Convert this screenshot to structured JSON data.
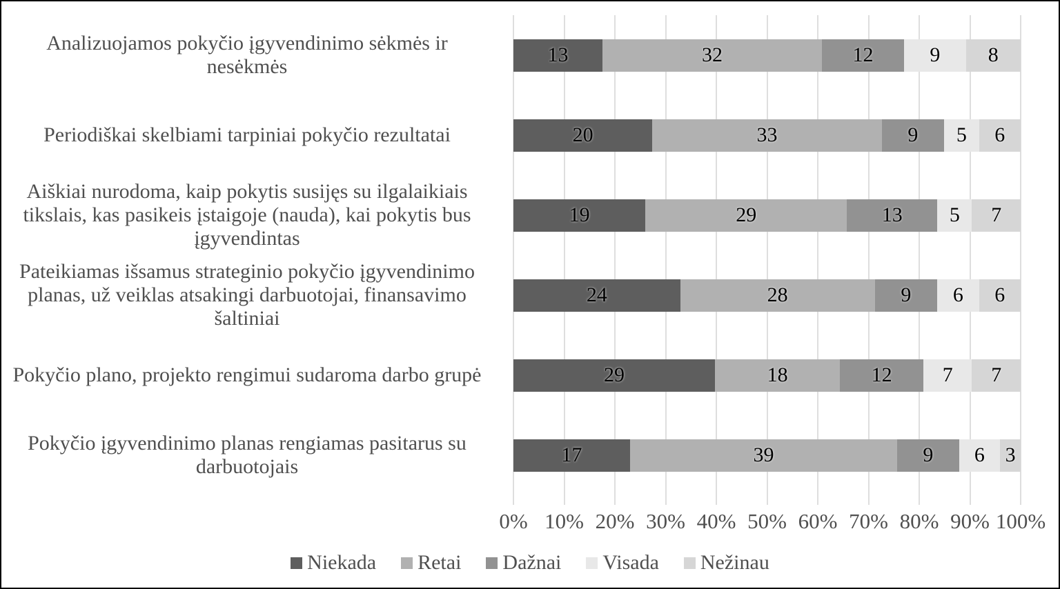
{
  "chart_data": {
    "type": "bar",
    "subtype": "stacked-100-horizontal",
    "title": "",
    "xlabel": "",
    "ylabel": "",
    "grid": "vertical",
    "legend_position": "bottom",
    "colors": {
      "background": "#ffffff",
      "figure_border": "#000000",
      "gridline": "#dedede",
      "axis_text": "#4f4f4f",
      "category_text": "#4f4f4f",
      "data_label_text": "#000000"
    },
    "categories": [
      "Analizuojamos pokyčio įgyvendinimo sėkmės ir nesėkmės",
      "Periodiškai skelbiami tarpiniai pokyčio rezultatai",
      "Aiškiai nurodoma, kaip pokytis susijęs su ilgalaikiais tikslais, kas pasikeis įstaigoje (nauda), kai pokytis bus įgyvendintas",
      "Pateikiamas išsamus strateginio pokyčio įgyvendinimo planas, už veiklas atsakingi darbuotojai, finansavimo šaltiniai",
      "Pokyčio plano, projekto rengimui sudaroma darbo grupė",
      "Pokyčio įgyvendinimo planas rengiamas pasitarus su darbuotojais"
    ],
    "series": [
      {
        "name": "Niekada",
        "color": "#5e5e5e",
        "values": [
          13,
          20,
          19,
          24,
          29,
          17
        ]
      },
      {
        "name": "Retai",
        "color": "#b1b1b1",
        "values": [
          32,
          33,
          29,
          28,
          18,
          39
        ]
      },
      {
        "name": "Dažnai",
        "color": "#929292",
        "values": [
          12,
          9,
          13,
          9,
          12,
          9
        ]
      },
      {
        "name": "Visada",
        "color": "#e8e8e8",
        "values": [
          9,
          5,
          5,
          6,
          7,
          6
        ]
      },
      {
        "name": "Nežinau",
        "color": "#d6d6d6",
        "values": [
          8,
          6,
          7,
          6,
          7,
          3
        ]
      }
    ],
    "x_axis": {
      "min": 0,
      "max": 100,
      "ticks": [
        "0%",
        "10%",
        "20%",
        "30%",
        "40%",
        "50%",
        "60%",
        "70%",
        "80%",
        "90%",
        "100%"
      ]
    }
  }
}
